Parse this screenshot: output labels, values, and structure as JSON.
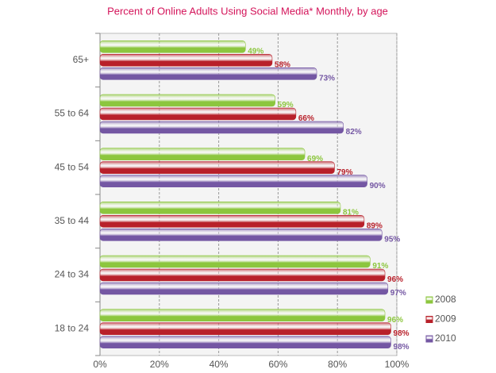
{
  "chart_data": {
    "type": "bar",
    "orientation": "horizontal",
    "title": "Percent of Online Adults Using Social Media* Monthly, by age",
    "categories": [
      "65+",
      "55 to 64",
      "45 to 54",
      "35 to 44",
      "24 to 34",
      "18 to 24"
    ],
    "series": [
      {
        "name": "2008",
        "color": "#8cc63e",
        "values": [
          49,
          59,
          69,
          81,
          91,
          96
        ],
        "value_labels": [
          "49%",
          "59%",
          "69%",
          "81%",
          "91%",
          "96%"
        ]
      },
      {
        "name": "2009",
        "color": "#b8202a",
        "values": [
          58,
          66,
          79,
          89,
          96,
          98
        ],
        "value_labels": [
          "58%",
          "66%",
          "79%",
          "89%",
          "96%",
          "98%"
        ]
      },
      {
        "name": "2010",
        "color": "#7457a3",
        "values": [
          73,
          82,
          90,
          95,
          97,
          98
        ],
        "value_labels": [
          "73%",
          "82%",
          "90%",
          "95%",
          "97%",
          "98%"
        ]
      }
    ],
    "xlim": [
      0,
      100
    ],
    "xticks": [
      {
        "value": 0,
        "label": "0%"
      },
      {
        "value": 20,
        "label": "20%"
      },
      {
        "value": 40,
        "label": "40%"
      },
      {
        "value": 60,
        "label": "60%"
      },
      {
        "value": 80,
        "label": "80%"
      },
      {
        "value": 100,
        "label": "100%"
      }
    ],
    "grid": true,
    "legend": "bottom-right"
  }
}
